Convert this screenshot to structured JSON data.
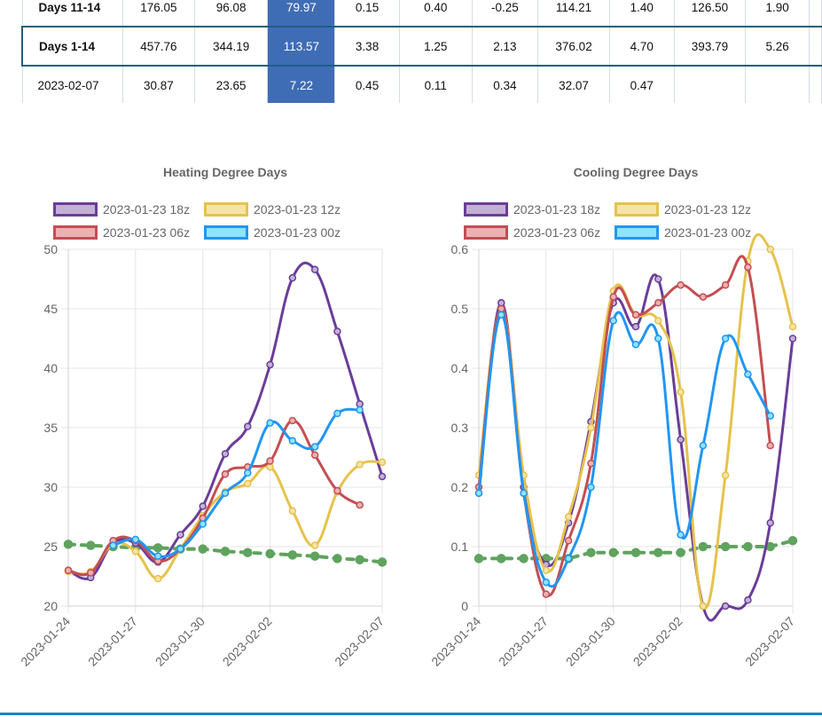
{
  "table": {
    "rows": [
      {
        "label": "Days 11-14",
        "cells": [
          "176.05",
          "96.08",
          "79.97",
          "0.15",
          "0.40",
          "-0.25",
          "114.21",
          "1.40",
          "126.50",
          "1.90"
        ]
      },
      {
        "label": "Days 1-14",
        "cells": [
          "457.76",
          "344.19",
          "113.57",
          "3.38",
          "1.25",
          "2.13",
          "376.02",
          "4.70",
          "393.79",
          "5.26"
        ]
      },
      {
        "label": "2023-02-07",
        "cells": [
          "30.87",
          "23.65",
          "7.22",
          "0.45",
          "0.11",
          "0.34",
          "32.07",
          "0.47",
          "",
          ""
        ]
      }
    ]
  },
  "chart_data": [
    {
      "type": "line",
      "title": "Heating Degree Days",
      "x": [
        "2023-01-24",
        "2023-01-25",
        "2023-01-26",
        "2023-01-27",
        "2023-01-28",
        "2023-01-29",
        "2023-01-30",
        "2023-01-31",
        "2023-02-01",
        "2023-02-02",
        "2023-02-03",
        "2023-02-04",
        "2023-02-05",
        "2023-02-06",
        "2023-02-07"
      ],
      "x_ticks": [
        "2023-01-24",
        "2023-01-27",
        "2023-01-30",
        "2023-02-02",
        "2023-02-07"
      ],
      "ylim": [
        20,
        50
      ],
      "y_ticks": [
        20,
        25,
        30,
        35,
        40,
        45,
        50
      ],
      "grid": true,
      "legend": "top",
      "series": [
        {
          "name": "2023-01-23 18z",
          "color": "#6a3d9a",
          "fill": "#c5b0d5",
          "values": [
            23.0,
            22.4,
            25.3,
            25.3,
            23.7,
            26.0,
            28.4,
            32.8,
            35.1,
            40.3,
            47.6,
            48.3,
            43.1,
            37.0,
            30.9
          ]
        },
        {
          "name": "2023-01-23 12z",
          "color": "#e6c24b",
          "fill": "#f5e4a8",
          "values": [
            22.9,
            22.9,
            25.2,
            24.6,
            22.3,
            24.8,
            27.6,
            29.6,
            30.3,
            31.7,
            28.0,
            25.1,
            29.6,
            31.9,
            32.1
          ]
        },
        {
          "name": "2023-01-23 06z",
          "color": "#c44e52",
          "fill": "#eab1b3",
          "values": [
            23.0,
            22.8,
            25.5,
            25.5,
            23.8,
            24.8,
            27.4,
            31.1,
            31.7,
            32.2,
            35.6,
            32.7,
            29.7,
            28.5,
            null
          ]
        },
        {
          "name": "2023-01-23 00z",
          "color": "#2196f3",
          "fill": "#8fe3fa",
          "values": [
            null,
            null,
            25.1,
            25.6,
            24.2,
            24.8,
            26.9,
            29.5,
            31.2,
            35.4,
            33.9,
            33.4,
            36.2,
            36.5,
            null
          ]
        },
        {
          "name": "",
          "color": "#5fa35f",
          "dashed": true,
          "values": [
            25.2,
            25.1,
            25.0,
            24.9,
            24.9,
            24.8,
            24.8,
            24.6,
            24.5,
            24.4,
            24.3,
            24.2,
            24.0,
            23.9,
            23.7
          ]
        }
      ]
    },
    {
      "type": "line",
      "title": "Cooling Degree Days",
      "x": [
        "2023-01-24",
        "2023-01-25",
        "2023-01-26",
        "2023-01-27",
        "2023-01-28",
        "2023-01-29",
        "2023-01-30",
        "2023-01-31",
        "2023-02-01",
        "2023-02-02",
        "2023-02-03",
        "2023-02-04",
        "2023-02-05",
        "2023-02-06",
        "2023-02-07"
      ],
      "x_ticks": [
        "2023-01-24",
        "2023-01-27",
        "2023-01-30",
        "2023-02-02",
        "2023-02-07"
      ],
      "ylim": [
        0,
        0.6
      ],
      "y_ticks": [
        0,
        0.1,
        0.2,
        0.3,
        0.4,
        0.5,
        0.6
      ],
      "grid": true,
      "legend": "top",
      "series": [
        {
          "name": "2023-01-23 18z",
          "color": "#6a3d9a",
          "fill": "#c5b0d5",
          "values": [
            0.19,
            0.51,
            0.2,
            0.07,
            0.14,
            0.31,
            0.51,
            0.47,
            0.55,
            0.28,
            0.0,
            0.0,
            0.01,
            0.14,
            0.45
          ]
        },
        {
          "name": "2023-01-23 12z",
          "color": "#e6c24b",
          "fill": "#f5e4a8",
          "values": [
            0.22,
            0.5,
            0.22,
            0.06,
            0.15,
            0.3,
            0.53,
            0.49,
            0.48,
            0.36,
            0.0,
            0.22,
            0.58,
            0.6,
            0.47
          ]
        },
        {
          "name": "2023-01-23 06z",
          "color": "#c44e52",
          "fill": "#eab1b3",
          "values": [
            0.2,
            0.5,
            0.19,
            0.02,
            0.11,
            0.24,
            0.52,
            0.49,
            0.51,
            0.54,
            0.52,
            0.54,
            0.57,
            0.27,
            null
          ]
        },
        {
          "name": "2023-01-23 00z",
          "color": "#2196f3",
          "fill": "#8fe3fa",
          "values": [
            0.19,
            0.49,
            0.19,
            0.04,
            0.08,
            0.2,
            0.48,
            0.44,
            0.45,
            0.12,
            0.27,
            0.45,
            0.39,
            0.32,
            null
          ]
        },
        {
          "name": "",
          "color": "#5fa35f",
          "dashed": true,
          "values": [
            0.08,
            0.08,
            0.08,
            0.08,
            0.08,
            0.09,
            0.09,
            0.09,
            0.09,
            0.09,
            0.1,
            0.1,
            0.1,
            0.1,
            0.11
          ]
        }
      ]
    }
  ]
}
